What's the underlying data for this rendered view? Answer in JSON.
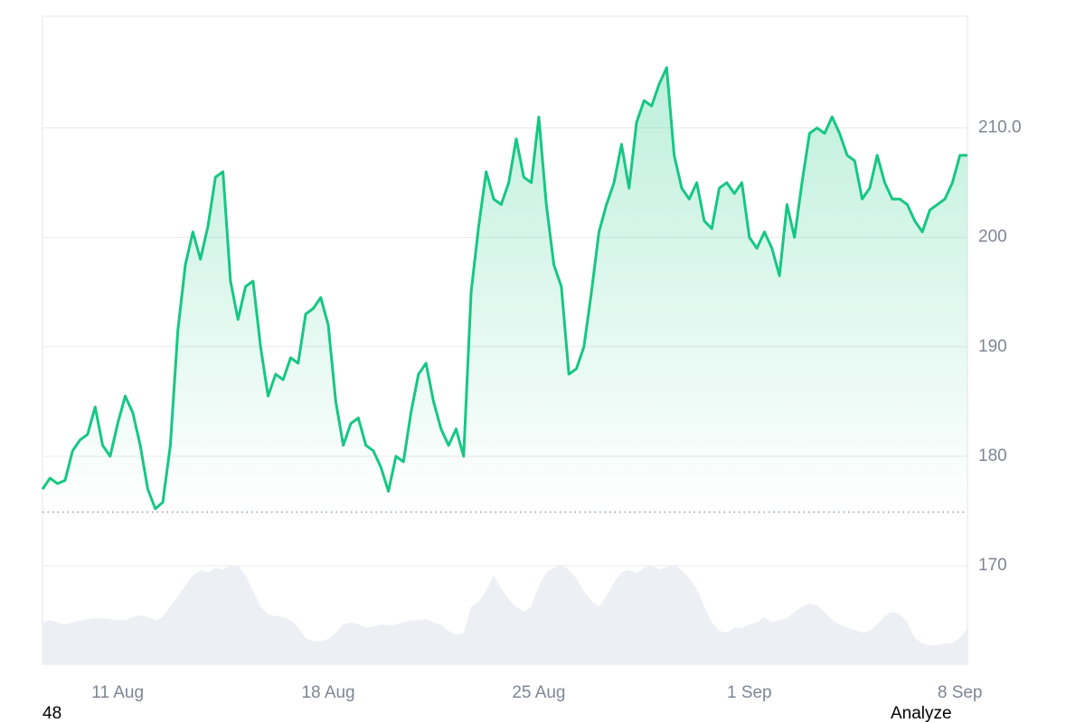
{
  "chart_data": {
    "type": "line",
    "categories": [
      null,
      null,
      null,
      null,
      null,
      null,
      null,
      null,
      null,
      null,
      "11 Aug",
      null,
      null,
      null,
      null,
      null,
      null,
      null,
      null,
      null,
      null,
      null,
      null,
      null,
      null,
      null,
      null,
      null,
      null,
      null,
      null,
      null,
      null,
      null,
      null,
      null,
      null,
      null,
      "18 Aug",
      null,
      null,
      null,
      null,
      null,
      null,
      null,
      null,
      null,
      null,
      null,
      null,
      null,
      null,
      null,
      null,
      null,
      null,
      null,
      null,
      null,
      null,
      null,
      null,
      null,
      null,
      null,
      "25 Aug",
      null,
      null,
      null,
      null,
      null,
      null,
      null,
      null,
      null,
      null,
      null,
      null,
      null,
      null,
      null,
      null,
      null,
      null,
      null,
      null,
      null,
      null,
      null,
      null,
      null,
      null,
      null,
      "1 Sep",
      null,
      null,
      null,
      null,
      null,
      null,
      null,
      null,
      null,
      null,
      null,
      null,
      null,
      null,
      null,
      null,
      null,
      null,
      null,
      null,
      null,
      null,
      null,
      null,
      null,
      null,
      null,
      "8 Sep",
      null
    ],
    "values": [
      177.0,
      178.0,
      177.5,
      177.8,
      180.5,
      181.5,
      182.0,
      184.5,
      181.0,
      180.0,
      183.0,
      185.5,
      184.0,
      181.0,
      177.0,
      175.2,
      175.8,
      181.0,
      191.5,
      197.5,
      200.5,
      198.0,
      201.0,
      205.5,
      206.0,
      196.0,
      192.5,
      195.5,
      196.0,
      190.0,
      185.5,
      187.5,
      187.0,
      189.0,
      188.5,
      193.0,
      193.5,
      194.5,
      192.0,
      185.0,
      181.0,
      183.0,
      183.5,
      181.0,
      180.5,
      179.0,
      176.8,
      180.0,
      179.5,
      184.0,
      187.5,
      188.5,
      185.0,
      182.5,
      181.0,
      182.5,
      180.0,
      195.0,
      201.0,
      206.0,
      203.5,
      203.0,
      205.0,
      209.0,
      205.5,
      205.0,
      211.0,
      203.0,
      197.5,
      195.5,
      187.5,
      188.0,
      190.0,
      195.0,
      200.5,
      203.0,
      205.0,
      208.5,
      204.5,
      210.5,
      212.5,
      212.0,
      214.0,
      215.5,
      207.5,
      204.5,
      203.5,
      205.0,
      201.5,
      200.8,
      204.5,
      205.0,
      204.0,
      205.0,
      200.0,
      199.0,
      200.5,
      199.0,
      196.5,
      203.0,
      200.0,
      205.0,
      209.5,
      210.0,
      209.5,
      211.0,
      209.5,
      207.5,
      207.0,
      203.5,
      204.5,
      207.5,
      205.0,
      203.5,
      203.5,
      203.0,
      201.5,
      200.5,
      202.5,
      203.0,
      203.5,
      205.0,
      207.5,
      207.5
    ],
    "color": "#16c784",
    "below_color": "#ea3943",
    "baseline": 174.9,
    "volumes": [
      40,
      42,
      40,
      38,
      40,
      42,
      43,
      44,
      44,
      43,
      42,
      42,
      45,
      47,
      45,
      42,
      45,
      55,
      65,
      75,
      85,
      90,
      88,
      92,
      90,
      95,
      94,
      85,
      70,
      55,
      48,
      46,
      45,
      42,
      35,
      25,
      22,
      22,
      24,
      30,
      38,
      40,
      38,
      35,
      36,
      38,
      37,
      38,
      40,
      42,
      42,
      43,
      40,
      38,
      32,
      28,
      30,
      55,
      60,
      70,
      85,
      72,
      62,
      55,
      50,
      55,
      75,
      88,
      92,
      95,
      90,
      82,
      70,
      60,
      55,
      65,
      78,
      88,
      90,
      87,
      92,
      95,
      90,
      93,
      95,
      90,
      82,
      72,
      55,
      40,
      32,
      30,
      35,
      35,
      38,
      40,
      45,
      40,
      42,
      44,
      50,
      55,
      58,
      56,
      50,
      42,
      38,
      35,
      33,
      30,
      32,
      38,
      46,
      50,
      48,
      40,
      25,
      20,
      18,
      18,
      20,
      20,
      25,
      35
    ],
    "volume_color": "#eceff3",
    "ylim": [
      161,
      220.2
    ],
    "yticks": [
      170,
      180,
      190,
      200,
      {
        "value": 210,
        "label": "210.0"
      }
    ],
    "grid": true
  },
  "footer": {
    "left": "48",
    "action": "Analyze"
  }
}
